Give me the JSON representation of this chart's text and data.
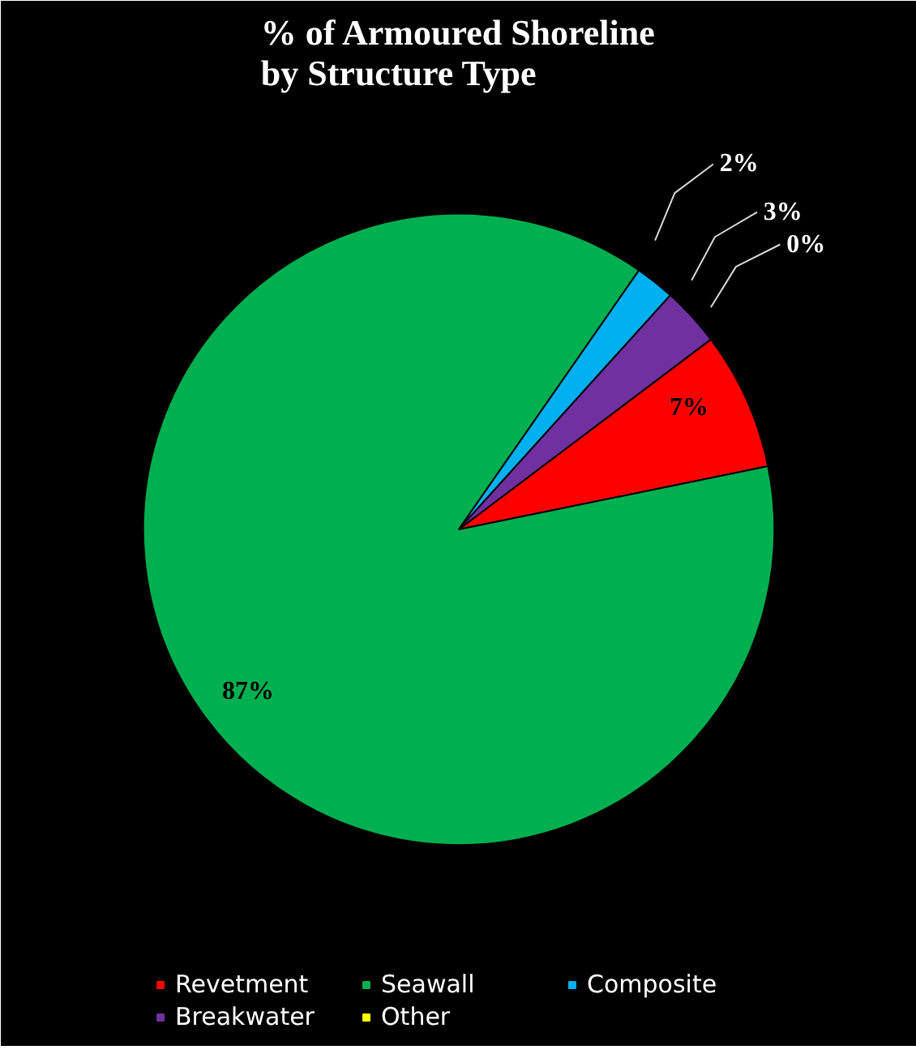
{
  "chart_data": {
    "type": "pie",
    "title": "% of Armoured Shoreline by Structure Type",
    "categories": [
      "Revetment",
      "Seawall",
      "Composite",
      "Breakwater",
      "Other"
    ],
    "values": [
      7,
      87,
      2,
      3,
      0
    ],
    "colors": [
      "#ff0000",
      "#00b050",
      "#00b0f0",
      "#7030a0",
      "#ffff00"
    ],
    "value_labels": [
      "7%",
      "87%",
      "2%",
      "3%",
      "0%"
    ],
    "legend": "bottom"
  }
}
